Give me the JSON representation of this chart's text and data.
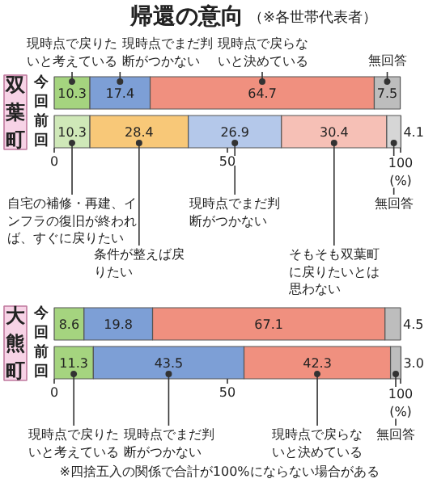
{
  "chart_data": [
    {
      "type": "bar",
      "orientation": "horizontal",
      "stacked": true,
      "title": "帰還の意向",
      "subtitle": "（※各世帯代表者）",
      "ylabel": "双葉町",
      "categories": [
        "今回",
        "前回"
      ],
      "xlim": [
        0,
        100
      ],
      "xticks": [
        0,
        50,
        {
          "value": 100,
          "label": "100\n(%)"
        }
      ],
      "data_labels": true,
      "series": [
        {
          "name": "現時点で戻りたいと考えている",
          "color": "#a5d47f",
          "values": [
            10.3,
            null
          ]
        },
        {
          "name": "現時点でまだ判断がつかない",
          "color": "#7d9fd6",
          "values": [
            17.4,
            null
          ]
        },
        {
          "name": "現時点で戻らないと決めている",
          "color": "#f0907f",
          "values": [
            64.7,
            null
          ]
        },
        {
          "name": "無回答",
          "color": "#bdbdbd",
          "values": [
            7.5,
            null
          ]
        },
        {
          "name": "自宅の補修・再建、インフラの復旧が終われば、すぐに戻りたい",
          "color": "#cfe8b8",
          "values": [
            null,
            10.3
          ]
        },
        {
          "name": "条件が整えば戻りたい",
          "color": "#f8c878",
          "values": [
            null,
            28.4
          ]
        },
        {
          "name": "現時点でまだ判断がつかない",
          "color": "#b4c8ea",
          "values": [
            null,
            26.9
          ]
        },
        {
          "name": "そもそも双葉町に戻りたいとは思わない",
          "color": "#f6c0b6",
          "values": [
            null,
            30.4
          ]
        },
        {
          "name": "無回答",
          "color": "#d6d6d6",
          "values": [
            null,
            4.1
          ]
        }
      ]
    },
    {
      "type": "bar",
      "orientation": "horizontal",
      "stacked": true,
      "ylabel": "大熊町",
      "categories": [
        "今回",
        "前回"
      ],
      "xlim": [
        0,
        100
      ],
      "xticks": [
        0,
        50,
        {
          "value": 100,
          "label": "100\n(%)"
        }
      ],
      "data_labels": true,
      "annotations": [
        "※四捨五入の関係で合計が100%にならない場合がある"
      ],
      "series": [
        {
          "name": "現時点で戻りたいと考えている",
          "color": "#a5d47f",
          "values": [
            8.6,
            11.3
          ]
        },
        {
          "name": "現時点でまだ判断がつかない",
          "color": "#7d9fd6",
          "values": [
            19.8,
            43.5
          ]
        },
        {
          "name": "現時点で戻らないと決めている",
          "color": "#f0907f",
          "values": [
            67.1,
            42.3
          ]
        },
        {
          "name": "無回答",
          "color": "#bdbdbd",
          "values": [
            4.5,
            3.0
          ],
          "value_labels": [
            "4.5",
            "3.0"
          ]
        }
      ]
    }
  ]
}
